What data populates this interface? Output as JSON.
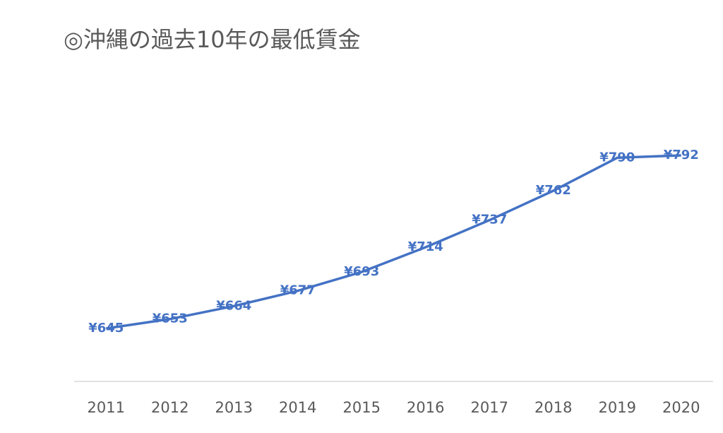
{
  "chart_data": {
    "type": "line",
    "title": "◎沖縄の過去10年の最低賃金",
    "categories": [
      "2011",
      "2012",
      "2013",
      "2014",
      "2015",
      "2016",
      "2017",
      "2018",
      "2019",
      "2020"
    ],
    "series": [
      {
        "color": "#4472c4",
        "values": [
          645,
          653,
          664,
          677,
          693,
          714,
          737,
          762,
          790,
          792
        ],
        "value_labels": [
          "¥645",
          "¥653",
          "¥664",
          "¥677",
          "¥693",
          "¥714",
          "¥737",
          "¥762",
          "¥790",
          "¥792"
        ]
      }
    ],
    "ylim": [
      600,
      900
    ]
  }
}
